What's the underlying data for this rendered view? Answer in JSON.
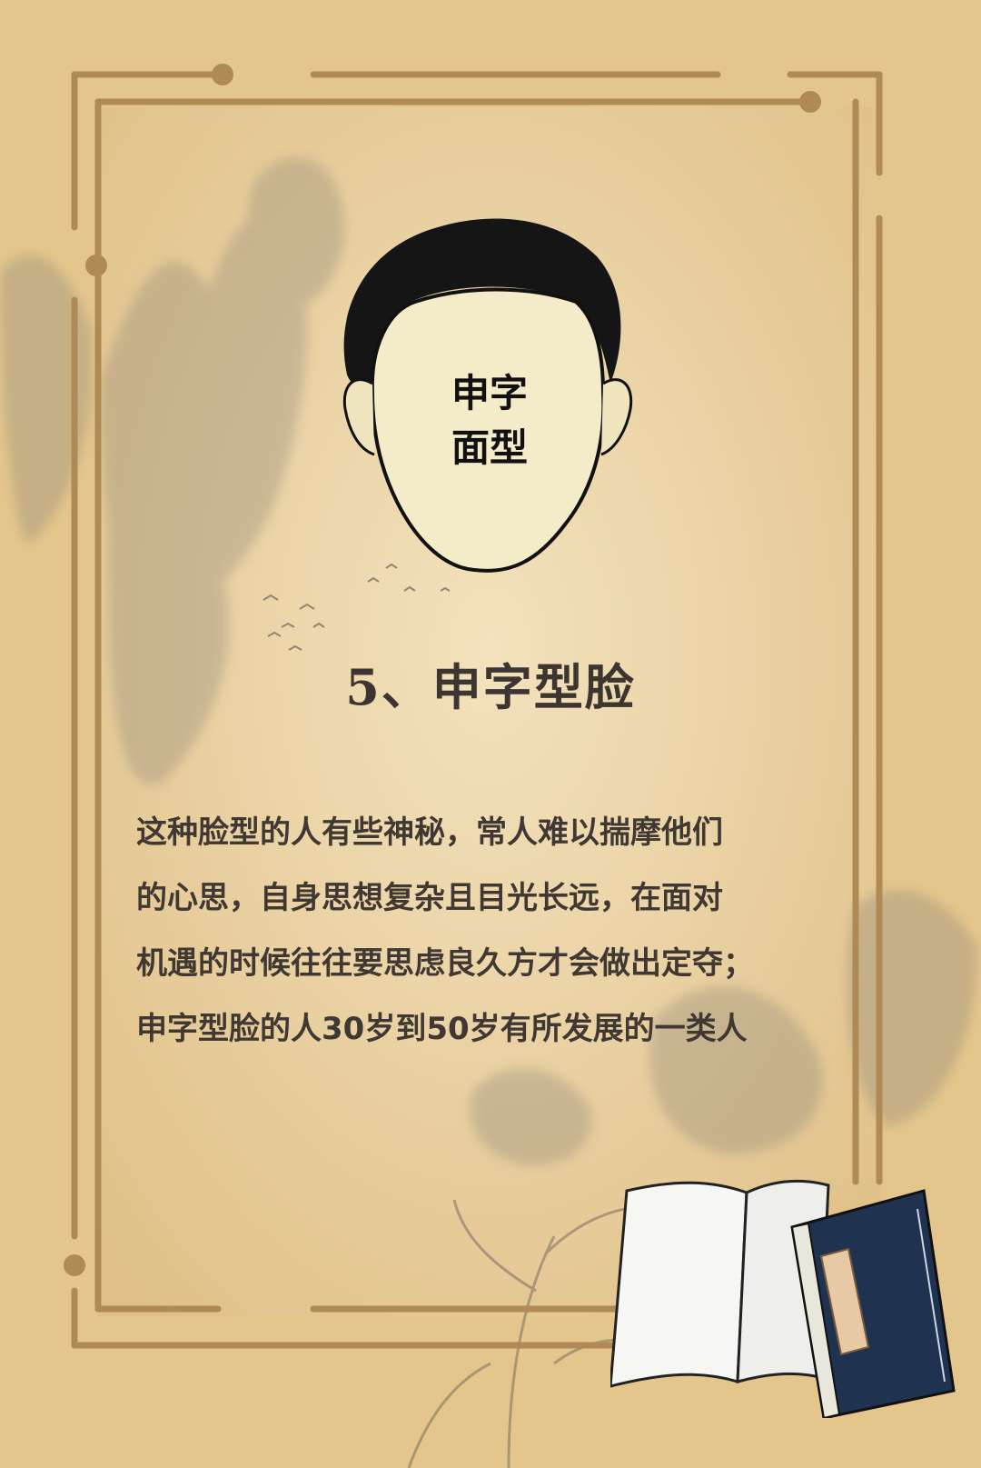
{
  "face_label": {
    "line1": "申字",
    "line2": "面型"
  },
  "title": "5、申字型脸",
  "description_lines": [
    "这种脸型的人有些神秘，常人难以揣摩他们",
    "的心思，自身思想复杂且目光长远，在面对",
    "机遇的时候往往要思虑良久方才会做出定夺；",
    "申字型脸的人30岁到50岁有所发展的一类人"
  ],
  "colors": {
    "paper_outer": "#e6c98f",
    "paper_inner": "#efdcb2",
    "frame": "#b08a55",
    "ink": "#3c3530",
    "book_cover": "#1f3350"
  },
  "icons": [
    "face-outline-icon",
    "ink-landscape-icon",
    "birds-icon",
    "book-icon"
  ]
}
